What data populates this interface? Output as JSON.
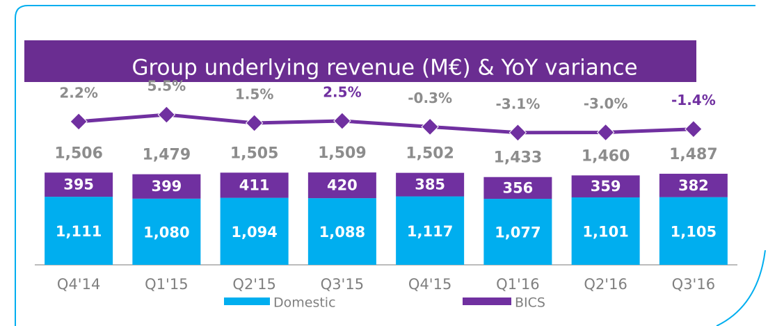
{
  "chart_data": {
    "type": "stacked_bar_line",
    "title": "Group underlying revenue (M€) & YoY variance",
    "categories": [
      "Q4'14",
      "Q1'15",
      "Q2'15",
      "Q3'15",
      "Q4'15",
      "Q1'16",
      "Q2'16",
      "Q3'16"
    ],
    "series": [
      {
        "name": "Domestic",
        "color": "#00aeef",
        "values": [
          1111,
          1080,
          1094,
          1088,
          1117,
          1077,
          1101,
          1105
        ],
        "value_labels": [
          "1,111",
          "1,080",
          "1,094",
          "1,088",
          "1,117",
          "1,077",
          "1,101",
          "1,105"
        ]
      },
      {
        "name": "BICS",
        "color": "#7030a0",
        "values": [
          395,
          399,
          411,
          420,
          385,
          356,
          359,
          382
        ]
      },
      {
        "name": "YoY variance",
        "type": "line",
        "axis": "y2",
        "color": "#7030a0",
        "values": [
          2.2,
          5.5,
          1.5,
          2.5,
          -0.3,
          -3.1,
          -3.0,
          -1.4
        ],
        "value_labels": [
          "2.2%",
          "5.5%",
          "1.5%",
          "2.5%",
          "-0.3%",
          "-3.1%",
          "-3.0%",
          "-1.4%"
        ],
        "value_label_colors": [
          "#8c8c8c",
          "#8c8c8c",
          "#8c8c8c",
          "#7030a0",
          "#8c8c8c",
          "#8c8c8c",
          "#8c8c8c",
          "#7030a0"
        ]
      }
    ],
    "totals": [
      1506,
      1479,
      1505,
      1509,
      1502,
      1433,
      1460,
      1487
    ],
    "total_labels": [
      "1,506",
      "1,479",
      "1,505",
      "1,509",
      "1,502",
      "1,433",
      "1,460",
      "1,487"
    ],
    "ylim": [
      0,
      1600
    ],
    "y2lim": [
      -20,
      20
    ]
  }
}
